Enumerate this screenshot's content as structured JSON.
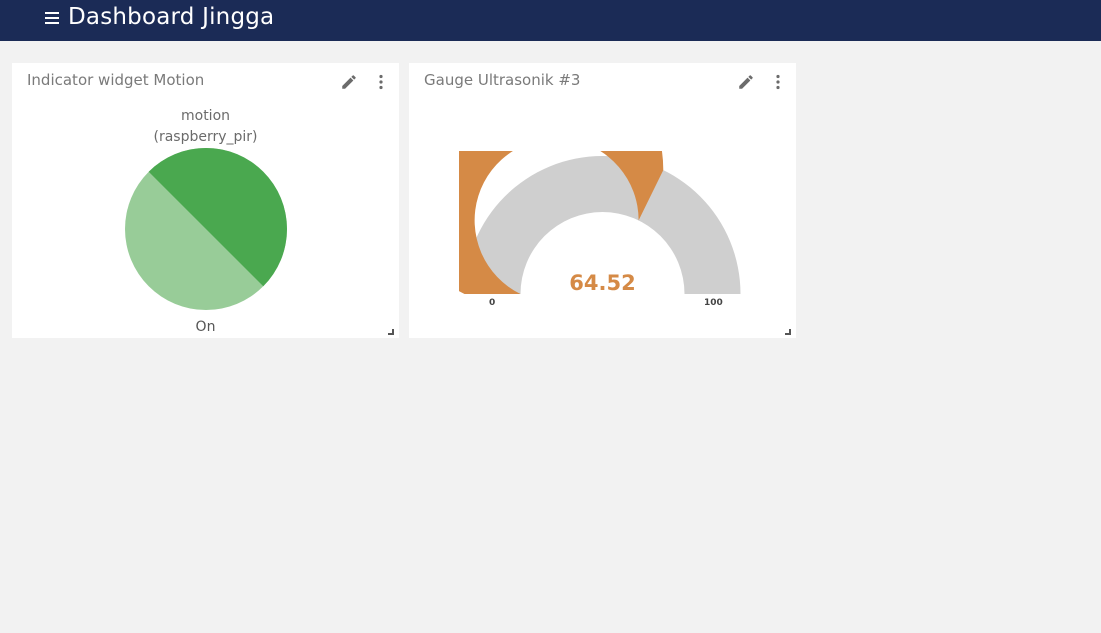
{
  "header": {
    "title": "Dashboard Jingga",
    "menu_icon": "hamburger-menu-icon",
    "background": "#1b2b56"
  },
  "widgets": [
    {
      "title": "Indicator widget Motion",
      "type": "indicator",
      "label_line1": "motion",
      "label_line2": "(raspberry_pir)",
      "state_text": "On",
      "colors": {
        "dark": "#4aa84f",
        "light": "#98cc98"
      }
    },
    {
      "title": "Gauge Ultrasonik #3",
      "type": "gauge",
      "value_text": "64.52",
      "min_text": "0",
      "max_text": "100",
      "chart_data": {
        "type": "gauge",
        "value": 64.52,
        "min": 0,
        "max": 100
      },
      "colors": {
        "fill": "#d58a46",
        "track": "#cfcfcf"
      }
    }
  ],
  "icons": {
    "edit": "pencil-icon",
    "more": "more-vertical-icon",
    "resize": "resize-handle-icon"
  }
}
